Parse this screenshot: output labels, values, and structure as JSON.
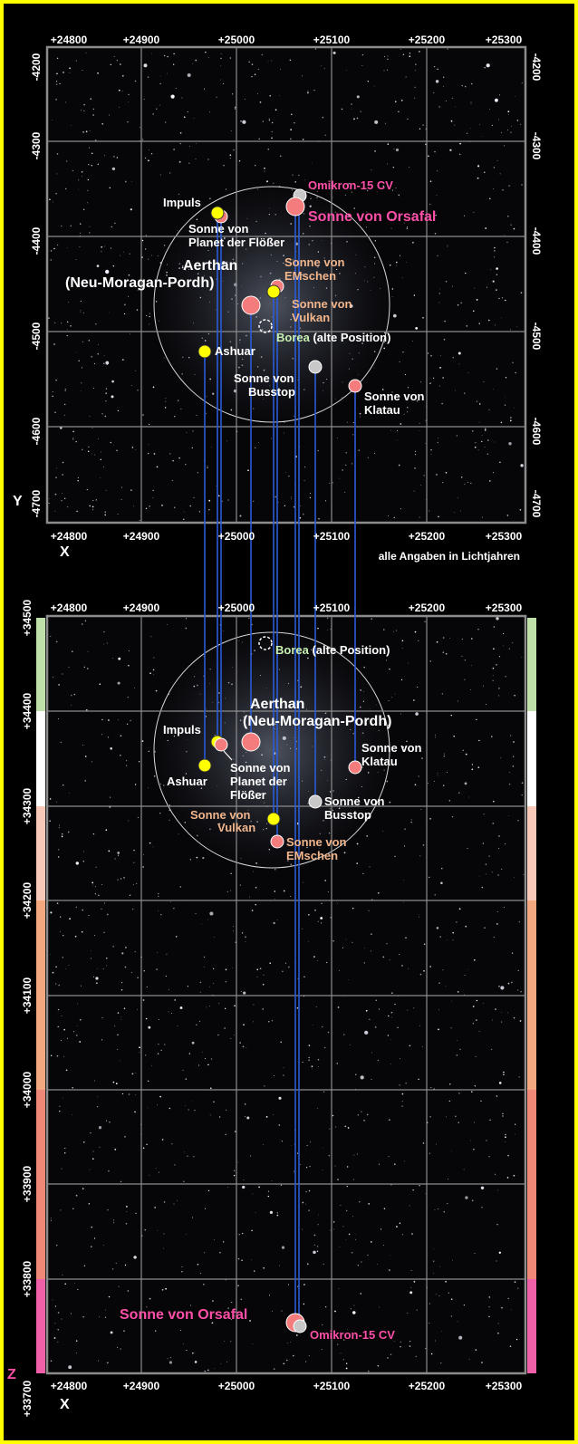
{
  "title": "",
  "colors": {
    "frame": "#ffff00",
    "grid": "#8c8c8c",
    "axis_label": "#ffffff",
    "projection_line": "#2a5bd7",
    "star_yellow": "#ffff00",
    "star_red": "#f47c7c",
    "star_gray": "#c8c8c8",
    "orsafal": "#ff4fa8",
    "orange_label": "#f2b68c",
    "borea_label": "#c8f0b0"
  },
  "units_note": "alle Angaben in Lichtjahren",
  "top_view": {
    "axis_x_letter": "X",
    "axis_y_letter": "Y",
    "x_ticks": [
      "+24800",
      "+24900",
      "+25000",
      "+25100",
      "+25200",
      "+25300"
    ],
    "y_ticks": [
      "-4200",
      "-4300",
      "-4400",
      "-4500",
      "-4600",
      "-4700"
    ],
    "labels": {
      "impuls": "Impuls",
      "floesser_1": "Sonne von",
      "floesser_2": "Planet der Flößer",
      "omikron": "Omikron-15 CV",
      "orsafal": "Sonne von Orsafal",
      "aerthan_1": "Aerthan",
      "aerthan_2": "(Neu-Moragan-Pordh)",
      "emschen_1": "Sonne von",
      "emschen_2": "EMschen",
      "vulkan_1": "Sonne von",
      "vulkan_2": "Vulkan",
      "borea_name": "Borea",
      "borea_suffix": " (alte Position)",
      "ashuar": "Ashuar",
      "busstop_1": "Sonne von",
      "busstop_2": "Busstop",
      "klatau_1": "Sonne von",
      "klatau_2": "Klatau"
    }
  },
  "bottom_view": {
    "axis_x_letter": "X",
    "axis_z_letter": "Z",
    "x_ticks": [
      "+24800",
      "+24900",
      "+25000",
      "+25100",
      "+25200",
      "+25300"
    ],
    "z_ticks": [
      "+34500",
      "+34400",
      "+34300",
      "+34200",
      "+34100",
      "+34000",
      "+33900",
      "+33800",
      "+33700"
    ],
    "labels": {
      "borea_name": "Borea",
      "borea_suffix": " (alte Position)",
      "aerthan_1": "Aerthan",
      "aerthan_2": "(Neu-Moragan-Pordh)",
      "impuls": "Impuls",
      "ashuar": "Ashuar",
      "floesser_1": "Sonne von",
      "floesser_2": "Planet der",
      "floesser_3": "Flößer",
      "klatau_1": "Sonne von",
      "klatau_2": "Klatau",
      "busstop_1": "Sonne von",
      "busstop_2": "Busstop",
      "vulkan_1": "Sonne von",
      "vulkan_2": "Vulkan",
      "emschen_1": "Sonne von",
      "emschen_2": "EMschen",
      "orsafal": "Sonne von Orsafal",
      "omikron": "Omikron-15 CV"
    }
  },
  "systems": [
    {
      "name": "Impuls",
      "color": "yellow"
    },
    {
      "name": "Sonne von Planet der Flößer",
      "color": "red"
    },
    {
      "name": "Omikron-15 CV",
      "color": "gray"
    },
    {
      "name": "Sonne von Orsafal",
      "color": "red"
    },
    {
      "name": "Aerthan (Neu-Moragan-Pordh)",
      "color": "red"
    },
    {
      "name": "Sonne von EMschen",
      "color": "red"
    },
    {
      "name": "Sonne von Vulkan",
      "color": "yellow"
    },
    {
      "name": "Borea (alte Position)",
      "color": "dashed"
    },
    {
      "name": "Ashuar",
      "color": "yellow"
    },
    {
      "name": "Sonne von Busstop",
      "color": "gray"
    },
    {
      "name": "Sonne von Klatau",
      "color": "red"
    }
  ],
  "z_scale_colors": [
    "#bfe0a8",
    "#ffffff",
    "#f8c8b8",
    "#f4a880",
    "#f08878",
    "#f060a8"
  ]
}
